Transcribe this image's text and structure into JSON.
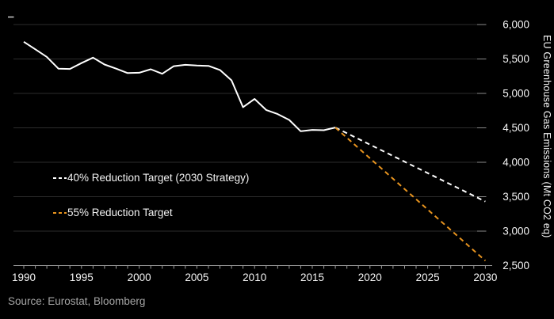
{
  "chart_data": {
    "type": "line",
    "title": "",
    "xlabel": "",
    "ylabel": "EU Greenhouse Gas Emissions (Mt CO2 eq)",
    "xlim": [
      1989,
      2030.6
    ],
    "ylim": [
      2500,
      6000
    ],
    "grid": "horizontal",
    "legend_position": "middle-left",
    "x_ticks": [
      1990,
      1995,
      2000,
      2005,
      2010,
      2015,
      2020,
      2025,
      2030
    ],
    "x_tick_labels": [
      "1990",
      "1995",
      "2000",
      "2005",
      "2010",
      "2015",
      "2020",
      "2025",
      "2030"
    ],
    "y_ticks": [
      6000,
      5500,
      5000,
      4500,
      4000,
      3500,
      3000,
      2500
    ],
    "y_tick_labels": [
      "6,000",
      "5,500",
      "5,000",
      "4,500",
      "4,000",
      "3,500",
      "3,000",
      "2,500"
    ],
    "series": [
      {
        "id": "historical-emissions-line",
        "name": "EU greenhouse gas emissions (historical)",
        "color": "#ffffff",
        "style": "solid",
        "x": [
          1990,
          1991,
          1992,
          1993,
          1994,
          1995,
          1996,
          1997,
          1998,
          1999,
          2000,
          2001,
          2002,
          2003,
          2004,
          2005,
          2006,
          2007,
          2008,
          2009,
          2010,
          2011,
          2012,
          2013,
          2014,
          2015,
          2016,
          2017
        ],
        "values": [
          5750,
          5640,
          5530,
          5360,
          5355,
          5440,
          5520,
          5420,
          5360,
          5295,
          5300,
          5350,
          5285,
          5395,
          5415,
          5405,
          5400,
          5340,
          5190,
          4800,
          4920,
          4760,
          4700,
          4615,
          4450,
          4470,
          4465,
          4505
        ]
      },
      {
        "id": "target-40-line",
        "name": "40% Reduction Target (2030 Strategy)",
        "color": "#ffffff",
        "style": "dashed",
        "x": [
          2017,
          2030
        ],
        "values": [
          4505,
          3430
        ]
      },
      {
        "id": "target-55-line",
        "name": "55% Reduction Target",
        "color": "#e8941f",
        "style": "dashed",
        "x": [
          2017,
          2030
        ],
        "values": [
          4505,
          2570
        ]
      }
    ]
  },
  "legend": {
    "items": [
      {
        "label": "40% Reduction Target (2030 Strategy)",
        "color": "#ffffff"
      },
      {
        "label": "55% Reduction Target",
        "color": "#e8941f"
      }
    ]
  },
  "source": {
    "text": "Source: Eurostat, Bloomberg"
  },
  "colors": {
    "background": "#000000",
    "grid": "#2d2d2d",
    "axis": "#9a9a9a",
    "right_tick": "#8a8a8a",
    "corner_tick": "#cfcfcf",
    "tick_label": "#f5f5f5",
    "orange": "#e8941f"
  }
}
